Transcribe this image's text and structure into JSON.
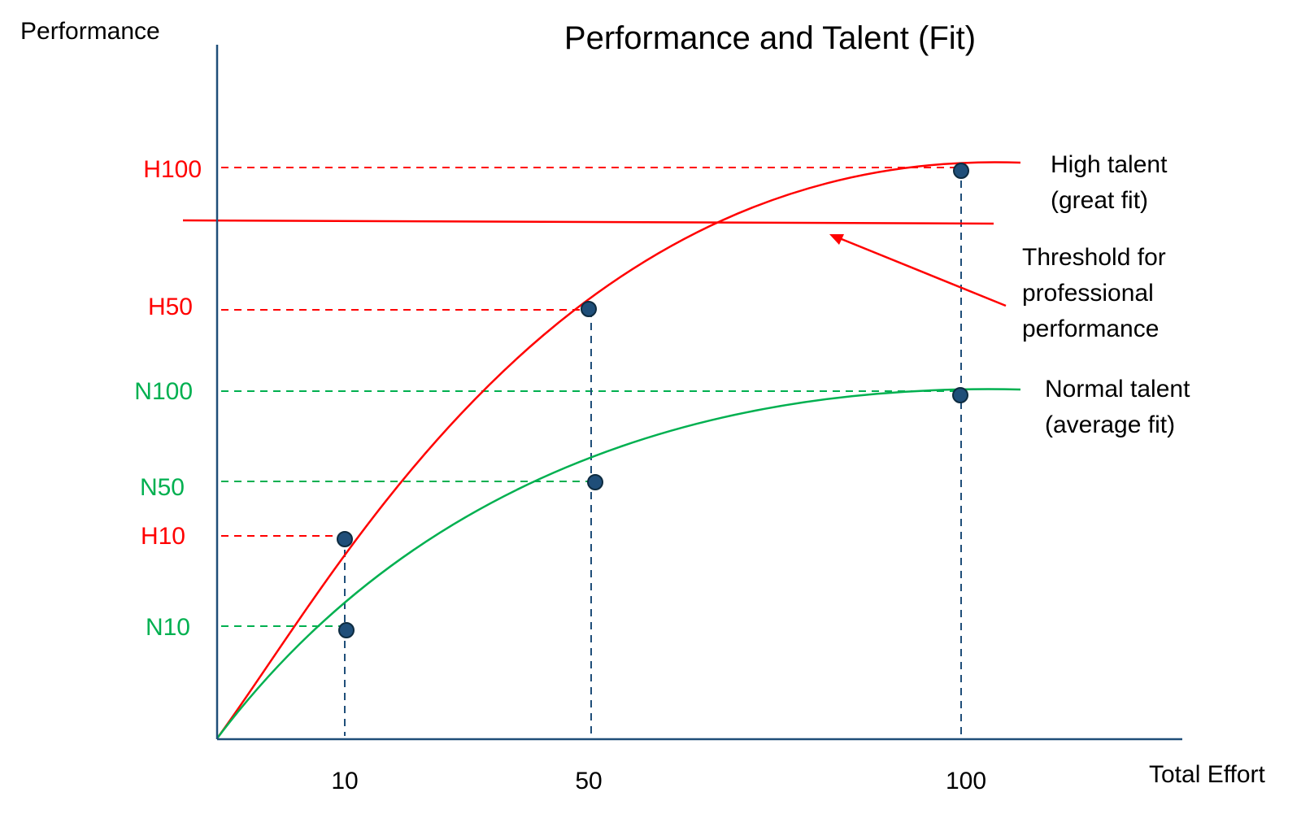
{
  "title": "Performance and Talent (Fit)",
  "y_axis_label": "Performance",
  "x_axis_label": "Total Effort",
  "x_ticks": [
    "10",
    "50",
    "100"
  ],
  "levels": [
    {
      "label": "H100",
      "series": "high"
    },
    {
      "label": "H50",
      "series": "high"
    },
    {
      "label": "N100",
      "series": "normal"
    },
    {
      "label": "N50",
      "series": "normal"
    },
    {
      "label": "H10",
      "series": "high"
    },
    {
      "label": "N10",
      "series": "normal"
    }
  ],
  "curves": {
    "high": {
      "label_line1": "High talent",
      "label_line2": "(great fit)"
    },
    "normal": {
      "label_line1": "Normal talent",
      "label_line2": "(average fit)"
    }
  },
  "threshold": {
    "label_line1": "Threshold for",
    "label_line2": "professional",
    "label_line3": "performance"
  },
  "colors": {
    "high": "#ff0000",
    "normal": "#00b050",
    "axis": "#1f4e79",
    "point": "#1f4e79"
  }
}
